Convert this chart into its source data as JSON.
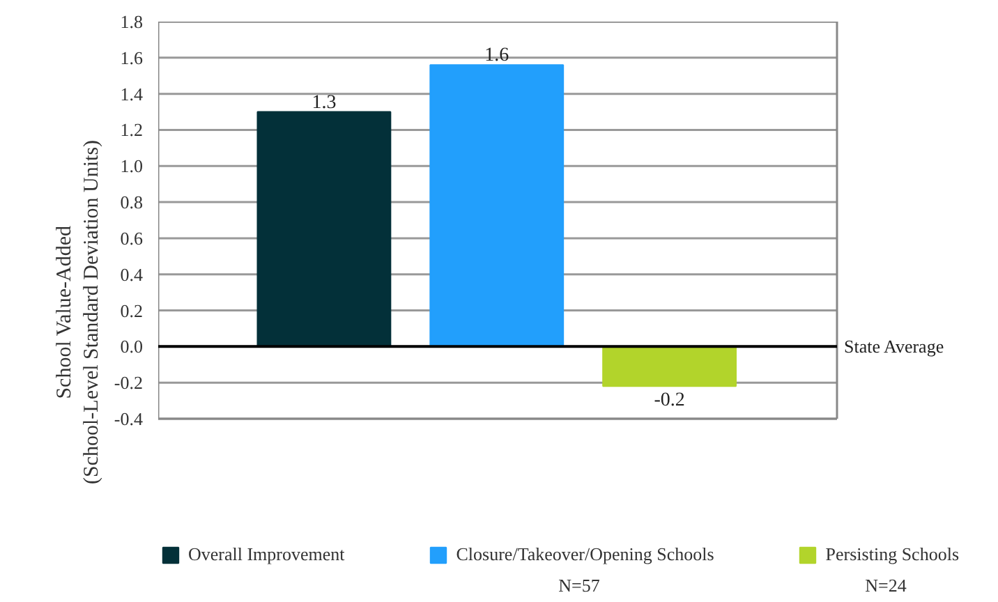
{
  "chart_data": {
    "type": "bar",
    "ylabel": "School Value-Added (School-Level Standard Deviation Units)",
    "categories": [
      null,
      null,
      null
    ],
    "series": [
      {
        "name": "Overall Improvement",
        "color": "#033039",
        "values": [
          1.3,
          null,
          null
        ],
        "value_labels": [
          "1.3",
          null,
          null
        ]
      },
      {
        "name": "Closure/Takeover/Opening Schools",
        "color": "#229ffc",
        "values": [
          null,
          1.56,
          null
        ],
        "value_labels": [
          null,
          "1.6",
          null
        ]
      },
      {
        "name": "Persisting Schools",
        "color": "#b2d42b",
        "values": [
          null,
          null,
          -0.22
        ],
        "value_labels": [
          null,
          null,
          "-0.2"
        ]
      }
    ],
    "ylim": [
      -0.4,
      1.8
    ],
    "yticks": [
      {
        "value": -0.4,
        "label": "-0.4"
      },
      {
        "value": -0.2,
        "label": "-0.2"
      },
      {
        "value": 0,
        "label": "0.0"
      },
      {
        "value": 0.2,
        "label": "0.2"
      },
      {
        "value": 0.4,
        "label": "0.4"
      },
      {
        "value": 0.6,
        "label": "0.6"
      },
      {
        "value": 0.8,
        "label": "0.8"
      },
      {
        "value": 1.0,
        "label": "1.0"
      },
      {
        "value": 1.2,
        "label": "1.2"
      },
      {
        "value": 1.4,
        "label": "1.4"
      },
      {
        "value": 1.6,
        "label": "1.6"
      },
      {
        "value": 1.8,
        "label": "1.8"
      }
    ],
    "ref_lines": [
      {
        "axis": "y",
        "value": 0,
        "label": "State Average",
        "color": "#000000"
      }
    ],
    "annotations": [
      "N=57",
      "N=24"
    ],
    "grid": "y",
    "legend": "bottom"
  }
}
